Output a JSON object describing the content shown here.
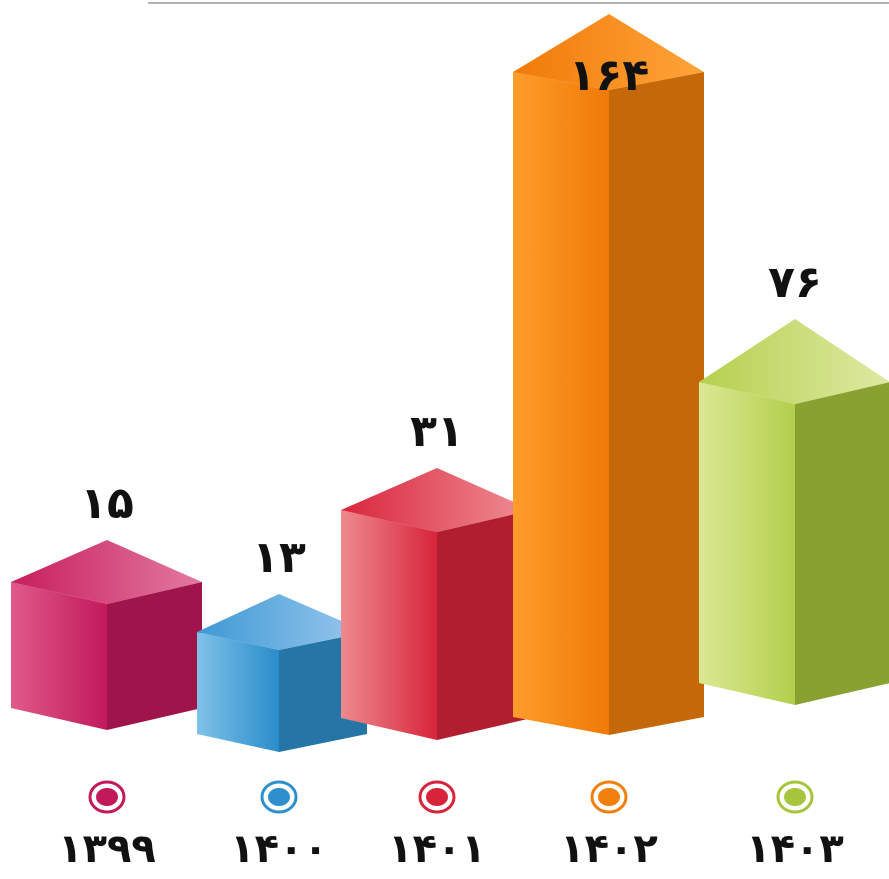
{
  "chart_data": {
    "type": "bar",
    "categories": [
      "۱۳۹۹",
      "۱۴۰۰",
      "۱۴۰۱",
      "۱۴۰۲",
      "۱۴۰۳"
    ],
    "values": [
      15,
      13,
      31,
      164,
      76
    ],
    "value_labels": [
      "۱۵",
      "۱۳",
      "۳۱",
      "۱۶۴",
      "۷۶"
    ],
    "colors": [
      "#c2195b",
      "#2d8fcc",
      "#d8243a",
      "#f07f0c",
      "#a6c43c"
    ],
    "style": "3d-boxes",
    "title": "",
    "xlabel": "",
    "ylabel": "",
    "legend": "none",
    "grid": false
  }
}
